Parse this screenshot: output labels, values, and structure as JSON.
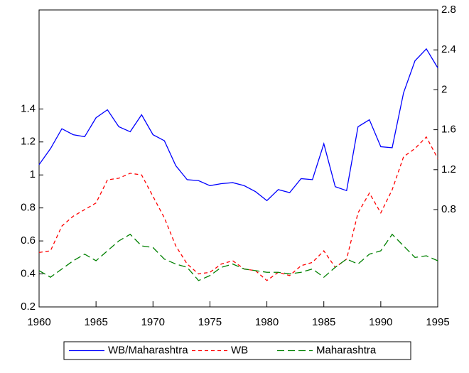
{
  "chart_data": {
    "type": "line",
    "x": [
      1960,
      1961,
      1962,
      1963,
      1964,
      1965,
      1966,
      1967,
      1968,
      1969,
      1970,
      1971,
      1972,
      1973,
      1974,
      1975,
      1976,
      1977,
      1978,
      1979,
      1980,
      1981,
      1982,
      1983,
      1984,
      1985,
      1986,
      1987,
      1988,
      1989,
      1990,
      1991,
      1992,
      1993,
      1994,
      1995
    ],
    "xlim": [
      1960,
      1995
    ],
    "xticks": [
      1960,
      1965,
      1970,
      1975,
      1980,
      1985,
      1990,
      1995
    ],
    "ylim": [
      0.2,
      2.0
    ],
    "yticks": [
      0.2,
      0.4,
      0.6,
      0.8,
      1.0,
      1.2,
      1.4
    ],
    "y2lim": [
      -0.175,
      2.8
    ],
    "y2ticks": [
      0.8,
      1.2,
      1.6,
      2.0,
      2.4,
      2.8
    ],
    "series": [
      {
        "name": "WB/Maharashtra",
        "color": "#0000ff",
        "axis": "y2",
        "dash": "none",
        "values": [
          1.25,
          1.41,
          1.61,
          1.55,
          1.53,
          1.72,
          1.8,
          1.63,
          1.58,
          1.75,
          1.55,
          1.49,
          1.24,
          1.1,
          1.09,
          1.04,
          1.06,
          1.07,
          1.04,
          0.98,
          0.89,
          1.0,
          0.97,
          1.11,
          1.1,
          1.46,
          1.03,
          0.99,
          1.63,
          1.7,
          1.43,
          1.42,
          1.97,
          2.29,
          2.41,
          2.22
        ]
      },
      {
        "name": "WB",
        "color": "#ff0000",
        "dash": "5,4",
        "values": [
          0.53,
          0.54,
          0.69,
          0.75,
          0.79,
          0.83,
          0.97,
          0.98,
          1.01,
          1.0,
          0.87,
          0.74,
          0.57,
          0.46,
          0.4,
          0.41,
          0.46,
          0.48,
          0.43,
          0.42,
          0.36,
          0.41,
          0.39,
          0.45,
          0.47,
          0.54,
          0.44,
          0.49,
          0.77,
          0.89,
          0.77,
          0.91,
          1.11,
          1.16,
          1.23,
          1.1
        ]
      },
      {
        "name": "Maharashtra",
        "color": "#008000",
        "dash": "10,5",
        "values": [
          0.42,
          0.38,
          0.43,
          0.48,
          0.52,
          0.48,
          0.54,
          0.6,
          0.64,
          0.57,
          0.56,
          0.49,
          0.46,
          0.44,
          0.36,
          0.39,
          0.44,
          0.46,
          0.43,
          0.42,
          0.41,
          0.41,
          0.4,
          0.41,
          0.43,
          0.38,
          0.44,
          0.49,
          0.46,
          0.52,
          0.54,
          0.64,
          0.57,
          0.5,
          0.51,
          0.48
        ]
      }
    ]
  }
}
